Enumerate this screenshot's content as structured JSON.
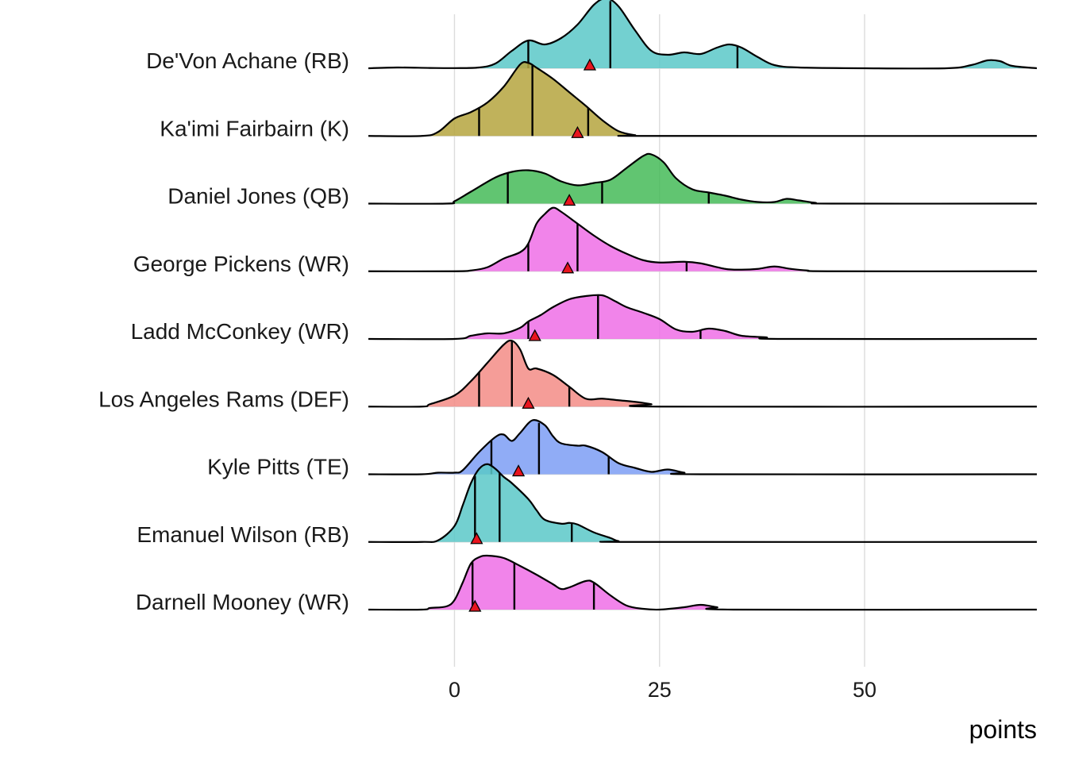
{
  "chart_data": {
    "type": "ridgeline",
    "title": "",
    "xlabel": "points",
    "ylabel": "",
    "xlim": [
      -10.5,
      71
    ],
    "x_ticks": [
      0,
      25,
      50
    ],
    "x_tick_labels": [
      "0",
      "25",
      "50"
    ],
    "grid": true,
    "series": [
      {
        "name": "De'Von Achane (RB)",
        "color": "#5bc8c8",
        "quantiles": [
          9,
          19,
          34.5
        ],
        "actual": 16.5,
        "density": [
          [
            -10.5,
            0
          ],
          [
            -7,
            0.01
          ],
          [
            -3,
            0.004
          ],
          [
            0,
            0.002
          ],
          [
            3,
            0.01
          ],
          [
            5,
            0.06
          ],
          [
            7,
            0.22
          ],
          [
            9,
            0.35
          ],
          [
            11,
            0.3
          ],
          [
            13,
            0.38
          ],
          [
            15,
            0.55
          ],
          [
            17,
            0.8
          ],
          [
            18.5,
            0.88
          ],
          [
            20,
            0.78
          ],
          [
            22,
            0.48
          ],
          [
            24,
            0.22
          ],
          [
            26,
            0.17
          ],
          [
            28,
            0.2
          ],
          [
            30,
            0.18
          ],
          [
            32,
            0.26
          ],
          [
            33.5,
            0.3
          ],
          [
            35,
            0.26
          ],
          [
            37,
            0.14
          ],
          [
            39,
            0.04
          ],
          [
            42,
            0.01
          ],
          [
            50,
            0
          ],
          [
            60,
            0
          ],
          [
            63,
            0.04
          ],
          [
            65,
            0.1
          ],
          [
            66.5,
            0.09
          ],
          [
            68,
            0.03
          ],
          [
            71,
            0
          ]
        ]
      },
      {
        "name": "Ka'imi Fairbairn (K)",
        "color": "#b5a43e",
        "quantiles": [
          3,
          9.5,
          16.3
        ],
        "actual": 15,
        "density": [
          [
            -10.5,
            0
          ],
          [
            -4,
            0
          ],
          [
            -2,
            0.05
          ],
          [
            0,
            0.22
          ],
          [
            2,
            0.3
          ],
          [
            4,
            0.42
          ],
          [
            6,
            0.62
          ],
          [
            8,
            0.9
          ],
          [
            9,
            0.92
          ],
          [
            10,
            0.86
          ],
          [
            12,
            0.72
          ],
          [
            14,
            0.55
          ],
          [
            16,
            0.38
          ],
          [
            18,
            0.2
          ],
          [
            20,
            0.06
          ],
          [
            22,
            0.01
          ],
          [
            24,
            0
          ],
          [
            71,
            0
          ]
        ]
      },
      {
        "name": "Daniel Jones (QB)",
        "color": "#45bb58",
        "quantiles": [
          6.5,
          18,
          31
        ],
        "actual": 14,
        "density": [
          [
            -10.5,
            0
          ],
          [
            -1,
            0
          ],
          [
            0,
            0.03
          ],
          [
            2,
            0.15
          ],
          [
            5,
            0.33
          ],
          [
            7,
            0.4
          ],
          [
            9,
            0.42
          ],
          [
            11,
            0.38
          ],
          [
            13,
            0.28
          ],
          [
            15,
            0.23
          ],
          [
            17,
            0.26
          ],
          [
            19,
            0.3
          ],
          [
            21,
            0.45
          ],
          [
            23,
            0.6
          ],
          [
            24,
            0.62
          ],
          [
            25.5,
            0.52
          ],
          [
            27,
            0.32
          ],
          [
            29,
            0.18
          ],
          [
            31,
            0.14
          ],
          [
            33,
            0.1
          ],
          [
            35,
            0.05
          ],
          [
            37,
            0.02
          ],
          [
            39,
            0.02
          ],
          [
            40.5,
            0.06
          ],
          [
            42,
            0.04
          ],
          [
            44,
            0.01
          ],
          [
            46,
            0
          ],
          [
            71,
            0
          ]
        ]
      },
      {
        "name": "George Pickens (WR)",
        "color": "#ee6ee6",
        "quantiles": [
          9,
          15,
          28.3
        ],
        "actual": 13.8,
        "density": [
          [
            -10.5,
            0
          ],
          [
            0,
            0
          ],
          [
            2,
            0.01
          ],
          [
            4,
            0.05
          ],
          [
            6,
            0.16
          ],
          [
            8,
            0.24
          ],
          [
            9,
            0.35
          ],
          [
            10,
            0.6
          ],
          [
            11,
            0.72
          ],
          [
            12,
            0.8
          ],
          [
            13,
            0.75
          ],
          [
            15,
            0.6
          ],
          [
            17,
            0.45
          ],
          [
            19,
            0.32
          ],
          [
            21,
            0.22
          ],
          [
            23,
            0.14
          ],
          [
            25,
            0.11
          ],
          [
            28,
            0.12
          ],
          [
            30,
            0.1
          ],
          [
            33,
            0.03
          ],
          [
            35,
            0.02
          ],
          [
            37,
            0.03
          ],
          [
            39,
            0.06
          ],
          [
            41,
            0.03
          ],
          [
            43,
            0.01
          ],
          [
            46,
            0
          ],
          [
            71,
            0
          ]
        ]
      },
      {
        "name": "Ladd McConkey (WR)",
        "color": "#ee6ee6",
        "quantiles": [
          9,
          17.5,
          30
        ],
        "actual": 9.8,
        "density": [
          [
            -10.5,
            0
          ],
          [
            0,
            0
          ],
          [
            2,
            0.04
          ],
          [
            4,
            0.07
          ],
          [
            6,
            0.07
          ],
          [
            8,
            0.14
          ],
          [
            9,
            0.22
          ],
          [
            10.5,
            0.3
          ],
          [
            12,
            0.4
          ],
          [
            14,
            0.5
          ],
          [
            16,
            0.54
          ],
          [
            18,
            0.55
          ],
          [
            19.5,
            0.48
          ],
          [
            21,
            0.4
          ],
          [
            23,
            0.33
          ],
          [
            25,
            0.25
          ],
          [
            27,
            0.12
          ],
          [
            29,
            0.09
          ],
          [
            31,
            0.13
          ],
          [
            33,
            0.1
          ],
          [
            35,
            0.04
          ],
          [
            38,
            0.02
          ],
          [
            40,
            0
          ],
          [
            71,
            0
          ]
        ]
      },
      {
        "name": "Los Angeles Rams (DEF)",
        "color": "#f38c86",
        "quantiles": [
          3,
          7,
          14
        ],
        "actual": 9,
        "density": [
          [
            -10.5,
            0
          ],
          [
            -4,
            0
          ],
          [
            -3,
            0.03
          ],
          [
            0,
            0.14
          ],
          [
            2,
            0.32
          ],
          [
            4,
            0.55
          ],
          [
            6,
            0.78
          ],
          [
            7,
            0.83
          ],
          [
            8,
            0.72
          ],
          [
            9,
            0.48
          ],
          [
            10,
            0.48
          ],
          [
            12,
            0.4
          ],
          [
            14,
            0.25
          ],
          [
            16,
            0.1
          ],
          [
            18,
            0.1
          ],
          [
            20,
            0.08
          ],
          [
            22,
            0.06
          ],
          [
            24,
            0.03
          ],
          [
            25,
            0
          ],
          [
            71,
            0
          ]
        ]
      },
      {
        "name": "Kyle Pitts (TE)",
        "color": "#7c9df5",
        "quantiles": [
          4.5,
          10.3,
          18.8
        ],
        "actual": 7.8,
        "density": [
          [
            -10.5,
            0
          ],
          [
            -4,
            0
          ],
          [
            -2,
            0.02
          ],
          [
            0,
            0.02
          ],
          [
            1,
            0.05
          ],
          [
            3,
            0.28
          ],
          [
            5,
            0.47
          ],
          [
            6,
            0.5
          ],
          [
            7,
            0.42
          ],
          [
            8,
            0.52
          ],
          [
            9.5,
            0.68
          ],
          [
            11,
            0.62
          ],
          [
            12,
            0.48
          ],
          [
            13,
            0.39
          ],
          [
            15,
            0.36
          ],
          [
            16,
            0.36
          ],
          [
            18,
            0.28
          ],
          [
            20,
            0.14
          ],
          [
            22,
            0.08
          ],
          [
            24,
            0.03
          ],
          [
            26,
            0.06
          ],
          [
            28,
            0.02
          ],
          [
            30,
            0
          ],
          [
            71,
            0
          ]
        ]
      },
      {
        "name": "Emanuel Wilson (RB)",
        "color": "#5bc8c8",
        "quantiles": [
          2.5,
          5.5,
          14.3
        ],
        "actual": 2.7,
        "density": [
          [
            -10.5,
            0
          ],
          [
            -4,
            0
          ],
          [
            -2,
            0.02
          ],
          [
            0,
            0.2
          ],
          [
            1,
            0.46
          ],
          [
            2,
            0.74
          ],
          [
            3,
            0.92
          ],
          [
            4,
            0.98
          ],
          [
            5,
            0.92
          ],
          [
            6,
            0.82
          ],
          [
            7,
            0.74
          ],
          [
            9,
            0.54
          ],
          [
            10,
            0.4
          ],
          [
            11,
            0.28
          ],
          [
            13,
            0.23
          ],
          [
            14,
            0.24
          ],
          [
            15,
            0.22
          ],
          [
            17,
            0.12
          ],
          [
            19,
            0.05
          ],
          [
            20,
            0.01
          ],
          [
            22,
            0
          ],
          [
            71,
            0
          ]
        ]
      },
      {
        "name": "Darnell Mooney (WR)",
        "color": "#ee6ee6",
        "quantiles": [
          2.2,
          7.3,
          17
        ],
        "actual": 2.5,
        "density": [
          [
            -10.5,
            0
          ],
          [
            -4,
            0
          ],
          [
            -3,
            0.02
          ],
          [
            -1,
            0.04
          ],
          [
            0,
            0.12
          ],
          [
            1,
            0.34
          ],
          [
            2,
            0.58
          ],
          [
            3,
            0.66
          ],
          [
            4,
            0.68
          ],
          [
            6,
            0.65
          ],
          [
            8,
            0.55
          ],
          [
            10,
            0.44
          ],
          [
            12,
            0.32
          ],
          [
            13,
            0.26
          ],
          [
            14,
            0.28
          ],
          [
            16,
            0.36
          ],
          [
            17,
            0.34
          ],
          [
            19,
            0.18
          ],
          [
            21,
            0.05
          ],
          [
            23,
            0.01
          ],
          [
            25,
            0
          ],
          [
            28,
            0.03
          ],
          [
            30,
            0.06
          ],
          [
            32,
            0.03
          ],
          [
            34,
            0
          ],
          [
            71,
            0
          ]
        ]
      }
    ]
  }
}
